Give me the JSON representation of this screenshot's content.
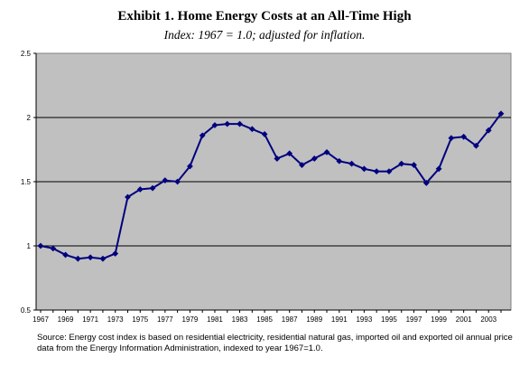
{
  "chart_data": {
    "type": "line",
    "title": "Exhibit 1.  Home Energy Costs at an All-Time High",
    "subtitle": "Index: 1967 = 1.0; adjusted for inflation.",
    "xlabel": "",
    "ylabel": "",
    "ylim": [
      0.5,
      2.5
    ],
    "yticks": [
      0.5,
      1,
      1.5,
      2,
      2.5
    ],
    "ytick_labels": [
      "0.5",
      "1",
      "1.5",
      "2",
      "2.5"
    ],
    "xticks": [
      1967,
      1969,
      1971,
      1973,
      1975,
      1977,
      1979,
      1981,
      1983,
      1985,
      1987,
      1989,
      1991,
      1993,
      1995,
      1997,
      1999,
      2001,
      2003
    ],
    "xtick_labels": [
      "1967",
      "1969",
      "1971",
      "1973",
      "1975",
      "1977",
      "1979",
      "1981",
      "1983",
      "1985",
      "1987",
      "1989",
      "1991",
      "1993",
      "1995",
      "1997",
      "1999",
      "2001",
      "2003"
    ],
    "xlim": [
      1967,
      2004
    ],
    "grid": "horizontal",
    "plot_background": "#c0c0c0",
    "series": [
      {
        "color": "#00007f",
        "x": [
          1967,
          1968,
          1969,
          1970,
          1971,
          1972,
          1973,
          1974,
          1975,
          1976,
          1977,
          1978,
          1979,
          1980,
          1981,
          1982,
          1983,
          1984,
          1985,
          1986,
          1987,
          1988,
          1989,
          1990,
          1991,
          1992,
          1993,
          1994,
          1995,
          1996,
          1997,
          1998,
          1999,
          2000,
          2001,
          2002,
          2003,
          2004
        ],
        "values": [
          1.0,
          0.98,
          0.93,
          0.9,
          0.91,
          0.9,
          0.94,
          1.38,
          1.44,
          1.45,
          1.51,
          1.5,
          1.62,
          1.86,
          1.94,
          1.95,
          1.95,
          1.91,
          1.87,
          1.68,
          1.72,
          1.63,
          1.68,
          1.73,
          1.66,
          1.64,
          1.6,
          1.58,
          1.58,
          1.64,
          1.63,
          1.49,
          1.6,
          1.84,
          1.85,
          1.78,
          1.9,
          2.03
        ]
      }
    ]
  },
  "source_note": "Source: Energy cost index is based on residential electricity, residential natural gas, imported oil and exported oil annual price data from the Energy Information Administration, indexed to year 1967=1.0."
}
